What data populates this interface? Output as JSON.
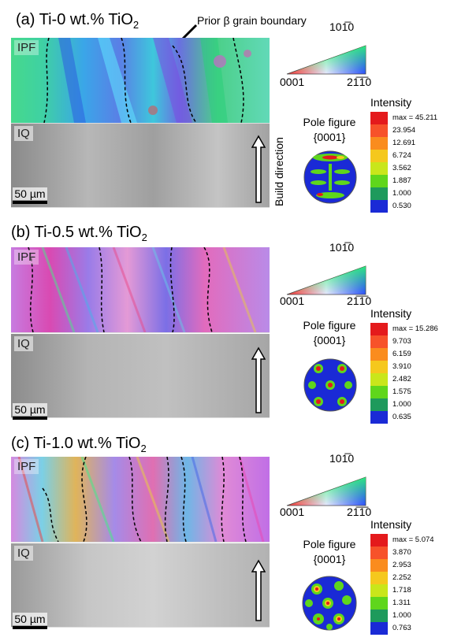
{
  "panels": [
    {
      "title_main": "(a) Ti-0 wt.% TiO",
      "title_sub": "2",
      "ipf_label": "IPF",
      "iq_label": "IQ",
      "scale_label": "50 µm",
      "pole_title": "Pole figure",
      "pole_sub": "{0001}",
      "intensity_title": "Intensity",
      "intensity_values": [
        "max = 45.211",
        "23.954",
        "12.691",
        "6.724",
        "3.562",
        "1.887",
        "1.000",
        "0.530"
      ]
    },
    {
      "title_main": "(b) Ti-0.5 wt.% TiO",
      "title_sub": "2",
      "ipf_label": "IPF",
      "iq_label": "IQ",
      "scale_label": "50 µm",
      "pole_title": "Pole figure",
      "pole_sub": "{0001}",
      "intensity_title": "Intensity",
      "intensity_values": [
        "max = 15.286",
        "9.703",
        "6.159",
        "3.910",
        "2.482",
        "1.575",
        "1.000",
        "0.635"
      ]
    },
    {
      "title_main": "(c) Ti-1.0 wt.% TiO",
      "title_sub": "2",
      "ipf_label": "IPF",
      "iq_label": "IQ",
      "scale_label": "50 µm",
      "pole_title": "Pole figure",
      "pole_sub": "{0001}",
      "intensity_title": "Intensity",
      "intensity_values": [
        "max = 5.074",
        "3.870",
        "2.953",
        "2.252",
        "1.718",
        "1.311",
        "1.000",
        "0.763"
      ]
    }
  ],
  "ipf_key": {
    "top": "101̅0",
    "left": "0001",
    "right": "21̅1̅0"
  },
  "annotation_boundary": "Prior β grain boundary",
  "build_direction": "Build direction",
  "colorbar_colors": [
    "#e41a1c",
    "#f7522a",
    "#fa8c1e",
    "#f5c81d",
    "#c9e61b",
    "#5fd61c",
    "#1e9a5c",
    "#1a2ad6"
  ]
}
